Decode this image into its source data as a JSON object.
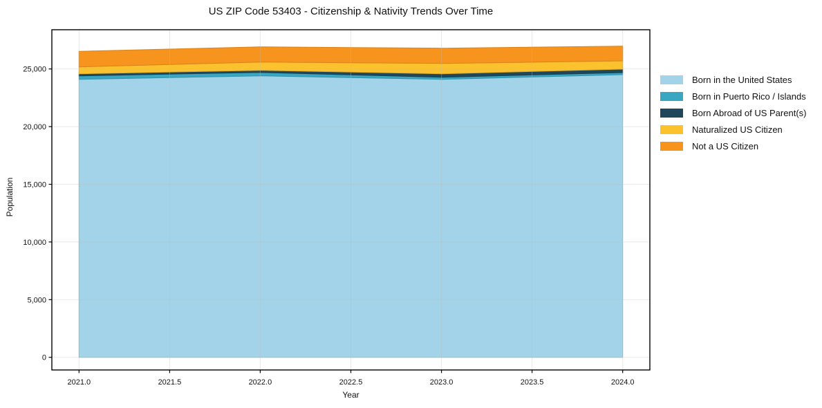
{
  "chart_data": {
    "type": "area",
    "stacked": true,
    "title": "US ZIP Code 53403 - Citizenship & Nativity Trends Over Time",
    "xlabel": "Year",
    "ylabel": "Population",
    "x": [
      2021,
      2022,
      2023,
      2024
    ],
    "series": [
      {
        "name": "Born in the United States",
        "color": "#A3D3E8",
        "values": [
          24100,
          24400,
          24100,
          24500
        ]
      },
      {
        "name": "Born in Puerto Rico / Islands",
        "color": "#39A7C2",
        "values": [
          300,
          300,
          180,
          180
        ]
      },
      {
        "name": "Born Abroad of US Parent(s)",
        "color": "#20465A",
        "values": [
          180,
          180,
          300,
          300
        ]
      },
      {
        "name": "Naturalized US Citizen",
        "color": "#FBC22D",
        "values": [
          600,
          720,
          900,
          720
        ]
      },
      {
        "name": "Not a US Citizen",
        "color": "#F7941E",
        "values": [
          1350,
          1320,
          1320,
          1280
        ]
      }
    ],
    "xlim": [
      2020.85,
      2024.15
    ],
    "ylim": [
      -1100,
      28400
    ],
    "xticks": [
      2021,
      2021.5,
      2022,
      2022.5,
      2023,
      2023.5,
      2024
    ],
    "yticks": [
      0,
      5000,
      10000,
      15000,
      20000,
      25000
    ],
    "grid": true,
    "legend_position": "right"
  }
}
